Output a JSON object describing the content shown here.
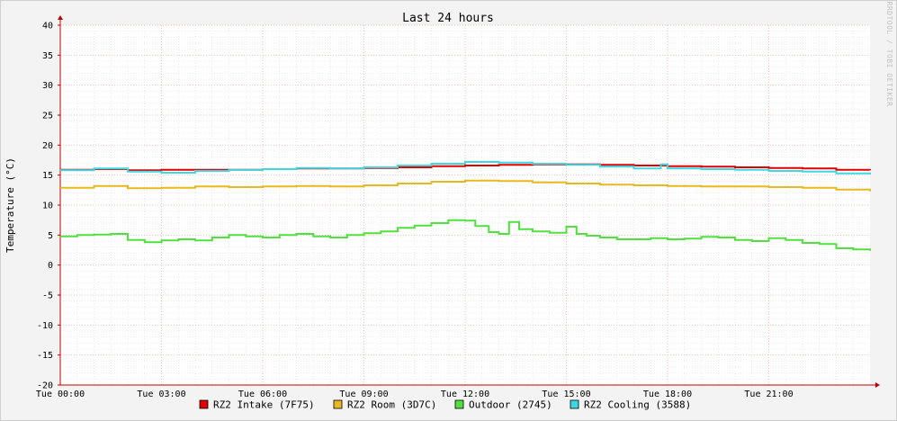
{
  "chart_data": {
    "type": "line",
    "title": "Last 24 hours",
    "ylabel": "Temperature (°C)",
    "watermark": "RRDTOOL / TOBI OETIKER",
    "ylim": [
      -20,
      40
    ],
    "yticks": [
      40,
      35,
      30,
      25,
      20,
      15,
      10,
      5,
      0,
      -5,
      -10,
      -15,
      -20
    ],
    "xlim": [
      0,
      24
    ],
    "xticks": [
      {
        "value": 0,
        "label": "Tue 00:00"
      },
      {
        "value": 3,
        "label": "Tue 03:00"
      },
      {
        "value": 6,
        "label": "Tue 06:00"
      },
      {
        "value": 9,
        "label": "Tue 09:00"
      },
      {
        "value": 12,
        "label": "Tue 12:00"
      },
      {
        "value": 15,
        "label": "Tue 15:00"
      },
      {
        "value": 18,
        "label": "Tue 18:00"
      },
      {
        "value": 21,
        "label": "Tue 21:00"
      }
    ],
    "grid": true,
    "legend_position": "bottom",
    "series": [
      {
        "name": "RZ2 Intake (7F75)",
        "color": "#e00000",
        "x": [
          0,
          1,
          2,
          3,
          4,
          5,
          6,
          7,
          8,
          9,
          10,
          11,
          12,
          13,
          14,
          15,
          16,
          17,
          18,
          19,
          20,
          21,
          22,
          23,
          24
        ],
        "y": [
          15.9,
          16.0,
          15.8,
          15.9,
          15.9,
          15.9,
          16.0,
          16.1,
          16.1,
          16.2,
          16.3,
          16.5,
          16.6,
          16.7,
          16.8,
          16.8,
          16.7,
          16.6,
          16.5,
          16.4,
          16.3,
          16.2,
          16.1,
          15.9,
          15.8
        ]
      },
      {
        "name": "RZ2 Room (3D7C)",
        "color": "#e8b820",
        "x": [
          0,
          1,
          2,
          3,
          4,
          5,
          6,
          7,
          8,
          9,
          10,
          11,
          12,
          13,
          14,
          15,
          16,
          17,
          18,
          19,
          20,
          21,
          22,
          23,
          24
        ],
        "y": [
          12.9,
          13.2,
          12.8,
          12.9,
          13.1,
          13.0,
          13.1,
          13.2,
          13.1,
          13.3,
          13.6,
          13.9,
          14.1,
          14.0,
          13.8,
          13.6,
          13.4,
          13.3,
          13.2,
          13.1,
          13.1,
          13.0,
          12.9,
          12.6,
          12.3
        ]
      },
      {
        "name": "Outdoor (2745)",
        "color": "#50e040",
        "x": [
          0,
          0.5,
          1,
          1.5,
          2,
          2.5,
          3,
          3.5,
          4,
          4.5,
          5,
          5.5,
          6,
          6.5,
          7,
          7.5,
          8,
          8.5,
          9,
          9.5,
          10,
          10.5,
          11,
          11.5,
          12,
          12.3,
          12.7,
          13,
          13.3,
          13.6,
          14,
          14.5,
          15,
          15.3,
          15.6,
          16,
          16.5,
          17,
          17.5,
          18,
          18.5,
          19,
          19.5,
          20,
          20.5,
          21,
          21.5,
          22,
          22.5,
          23,
          23.5,
          24
        ],
        "y": [
          4.8,
          5.0,
          5.1,
          5.2,
          4.2,
          3.8,
          4.1,
          4.3,
          4.1,
          4.6,
          5.0,
          4.8,
          4.6,
          5.0,
          5.2,
          4.8,
          4.6,
          5.0,
          5.3,
          5.6,
          6.2,
          6.6,
          7.0,
          7.5,
          7.4,
          6.5,
          5.5,
          5.2,
          7.2,
          6.0,
          5.6,
          5.4,
          6.4,
          5.2,
          4.9,
          4.6,
          4.3,
          4.3,
          4.5,
          4.3,
          4.4,
          4.7,
          4.6,
          4.2,
          4.0,
          4.5,
          4.2,
          3.7,
          3.5,
          2.8,
          2.6,
          2.4
        ]
      },
      {
        "name": "RZ2 Cooling (3588)",
        "color": "#40d8e0",
        "x": [
          0,
          1,
          2,
          3,
          4,
          5,
          6,
          7,
          8,
          9,
          10,
          11,
          12,
          13,
          14,
          15,
          16,
          17,
          17.8,
          18,
          19,
          20,
          21,
          22,
          23,
          24
        ],
        "y": [
          15.8,
          16.1,
          15.6,
          15.4,
          15.7,
          15.9,
          16.0,
          16.2,
          16.1,
          16.3,
          16.6,
          16.9,
          17.2,
          17.1,
          16.9,
          16.7,
          16.4,
          16.1,
          16.8,
          16.1,
          16.0,
          15.9,
          15.7,
          15.6,
          15.3,
          15.1
        ]
      }
    ]
  }
}
